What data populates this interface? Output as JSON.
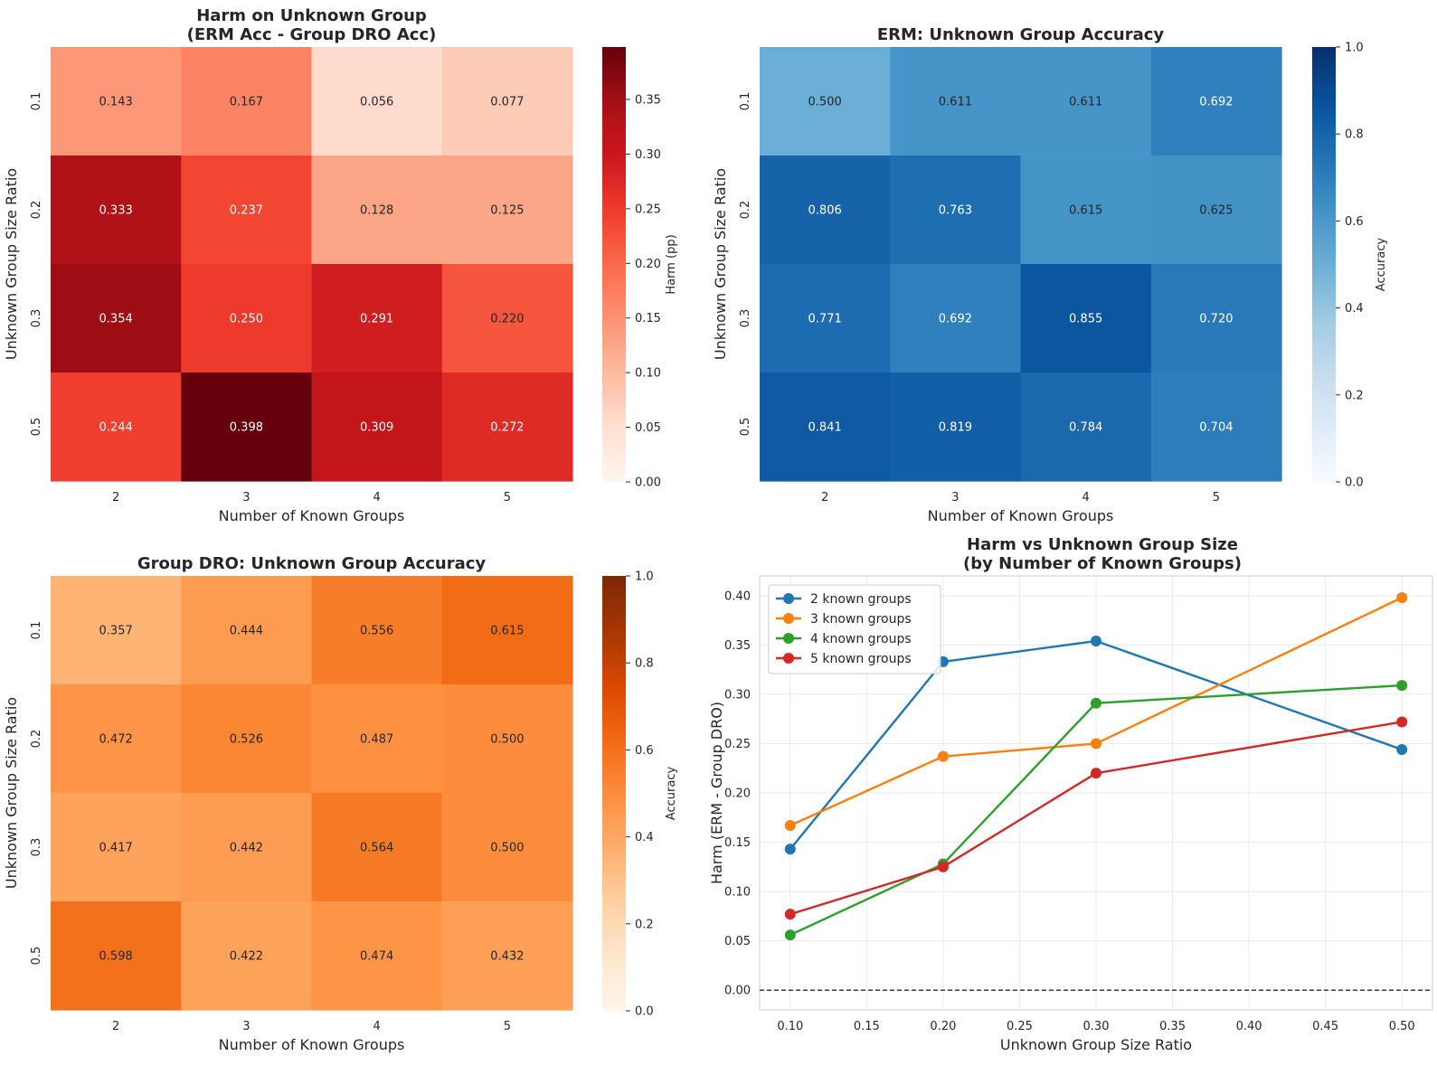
{
  "chart_data": [
    {
      "type": "heatmap",
      "title_lines": [
        "Harm on Unknown Group",
        "(ERM Acc - Group DRO Acc)"
      ],
      "xlabel": "Number of Known Groups",
      "ylabel": "Unknown Group Size Ratio",
      "x_categories": [
        "2",
        "3",
        "4",
        "5"
      ],
      "y_categories": [
        "0.1",
        "0.2",
        "0.3",
        "0.5"
      ],
      "values": [
        [
          0.143,
          0.167,
          0.056,
          0.077
        ],
        [
          0.333,
          0.237,
          0.128,
          0.125
        ],
        [
          0.354,
          0.25,
          0.291,
          0.22
        ],
        [
          0.244,
          0.398,
          0.309,
          0.272
        ]
      ],
      "labels": [
        [
          "0.143",
          "0.167",
          "0.056",
          "0.077"
        ],
        [
          "0.333",
          "0.237",
          "0.128",
          "0.125"
        ],
        [
          "0.354",
          "0.250",
          "0.291",
          "0.220"
        ],
        [
          "0.244",
          "0.398",
          "0.309",
          "0.272"
        ]
      ],
      "colormap": "Reds",
      "vmin": 0.0,
      "vmax": 0.398,
      "colorbar_label": "Harm (pp)",
      "colorbar_ticks": [
        "0.00",
        "0.05",
        "0.10",
        "0.15",
        "0.20",
        "0.25",
        "0.30",
        "0.35"
      ],
      "colorbar_tick_values": [
        0.0,
        0.05,
        0.1,
        0.15,
        0.2,
        0.25,
        0.3,
        0.35
      ]
    },
    {
      "type": "heatmap",
      "title_lines": [
        "ERM: Unknown Group Accuracy"
      ],
      "xlabel": "Number of Known Groups",
      "ylabel": "Unknown Group Size Ratio",
      "x_categories": [
        "2",
        "3",
        "4",
        "5"
      ],
      "y_categories": [
        "0.1",
        "0.2",
        "0.3",
        "0.5"
      ],
      "values": [
        [
          0.5,
          0.611,
          0.611,
          0.692
        ],
        [
          0.806,
          0.763,
          0.615,
          0.625
        ],
        [
          0.771,
          0.692,
          0.855,
          0.72
        ],
        [
          0.841,
          0.819,
          0.784,
          0.704
        ]
      ],
      "labels": [
        [
          "0.500",
          "0.611",
          "0.611",
          "0.692"
        ],
        [
          "0.806",
          "0.763",
          "0.615",
          "0.625"
        ],
        [
          "0.771",
          "0.692",
          "0.855",
          "0.720"
        ],
        [
          "0.841",
          "0.819",
          "0.784",
          "0.704"
        ]
      ],
      "colormap": "Blues",
      "vmin": 0.0,
      "vmax": 1.0,
      "colorbar_label": "Accuracy",
      "colorbar_ticks": [
        "0.0",
        "0.2",
        "0.4",
        "0.6",
        "0.8",
        "1.0"
      ],
      "colorbar_tick_values": [
        0.0,
        0.2,
        0.4,
        0.6,
        0.8,
        1.0
      ]
    },
    {
      "type": "heatmap",
      "title_lines": [
        "Group DRO: Unknown Group Accuracy"
      ],
      "xlabel": "Number of Known Groups",
      "ylabel": "Unknown Group Size Ratio",
      "x_categories": [
        "2",
        "3",
        "4",
        "5"
      ],
      "y_categories": [
        "0.1",
        "0.2",
        "0.3",
        "0.5"
      ],
      "values": [
        [
          0.357,
          0.444,
          0.556,
          0.615
        ],
        [
          0.472,
          0.526,
          0.487,
          0.5
        ],
        [
          0.417,
          0.442,
          0.564,
          0.5
        ],
        [
          0.598,
          0.422,
          0.474,
          0.432
        ]
      ],
      "labels": [
        [
          "0.357",
          "0.444",
          "0.556",
          "0.615"
        ],
        [
          "0.472",
          "0.526",
          "0.487",
          "0.500"
        ],
        [
          "0.417",
          "0.442",
          "0.564",
          "0.500"
        ],
        [
          "0.598",
          "0.422",
          "0.474",
          "0.432"
        ]
      ],
      "colormap": "Oranges",
      "vmin": 0.0,
      "vmax": 1.0,
      "colorbar_label": "Accuracy",
      "colorbar_ticks": [
        "0.0",
        "0.2",
        "0.4",
        "0.6",
        "0.8",
        "1.0"
      ],
      "colorbar_tick_values": [
        0.0,
        0.2,
        0.4,
        0.6,
        0.8,
        1.0
      ]
    },
    {
      "type": "line",
      "title_lines": [
        "Harm vs Unknown Group Size",
        "(by Number of Known Groups)"
      ],
      "xlabel": "Unknown Group Size Ratio",
      "ylabel": "Harm (ERM - Group DRO)",
      "x": [
        0.1,
        0.2,
        0.3,
        0.5
      ],
      "xlim": [
        0.08,
        0.52
      ],
      "ylim": [
        -0.02,
        0.42
      ],
      "xticks": [
        "0.10",
        "0.15",
        "0.20",
        "0.25",
        "0.30",
        "0.35",
        "0.40",
        "0.45",
        "0.50"
      ],
      "xtick_values": [
        0.1,
        0.15,
        0.2,
        0.25,
        0.3,
        0.35,
        0.4,
        0.45,
        0.5
      ],
      "yticks": [
        "0.00",
        "0.05",
        "0.10",
        "0.15",
        "0.20",
        "0.25",
        "0.30",
        "0.35",
        "0.40"
      ],
      "ytick_values": [
        0.0,
        0.05,
        0.1,
        0.15,
        0.2,
        0.25,
        0.3,
        0.35,
        0.4
      ],
      "grid": true,
      "legend_position": "top-left",
      "reference_line": 0.0,
      "series": [
        {
          "name": "2 known groups",
          "color": "#1f77b4",
          "values": [
            0.143,
            0.333,
            0.354,
            0.244
          ]
        },
        {
          "name": "3 known groups",
          "color": "#ff7f0e",
          "values": [
            0.167,
            0.237,
            0.25,
            0.398
          ]
        },
        {
          "name": "4 known groups",
          "color": "#2ca02c",
          "values": [
            0.056,
            0.128,
            0.291,
            0.309
          ]
        },
        {
          "name": "5 known groups",
          "color": "#d62728",
          "values": [
            0.077,
            0.125,
            0.22,
            0.272
          ]
        }
      ]
    }
  ]
}
